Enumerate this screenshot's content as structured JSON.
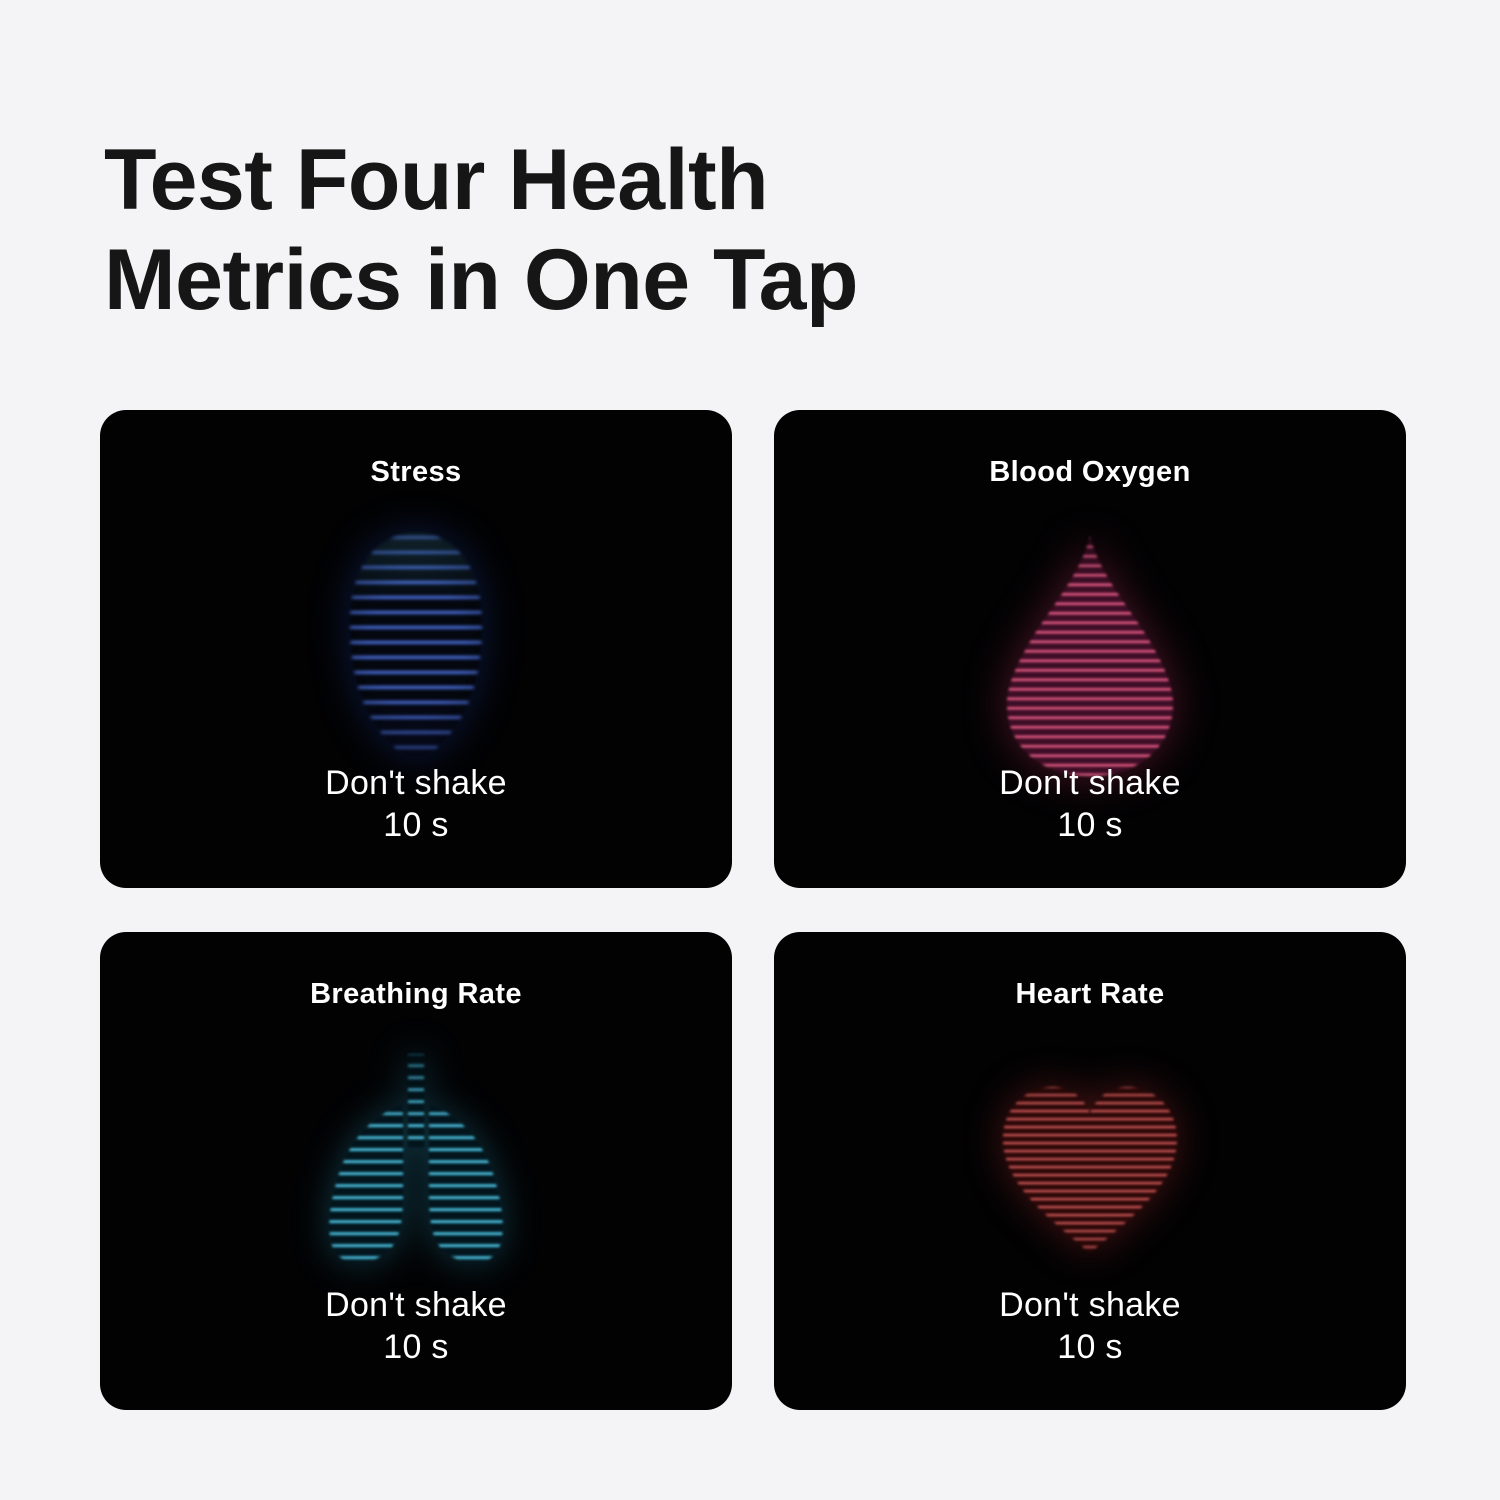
{
  "page": {
    "background_color": "#f4f4f6",
    "heading": {
      "line1": "Test Four Health",
      "line2": "Metrics in One Tap",
      "color": "#161616"
    }
  },
  "card_style": {
    "background_color": "#020203",
    "text_color": "#ffffff"
  },
  "cards": [
    {
      "title": "Stress",
      "instruction": "Don't shake",
      "countdown": "10 s",
      "icon": "head-scan-icon",
      "accent_color": "#3a64e4"
    },
    {
      "title": "Blood Oxygen",
      "instruction": "Don't shake",
      "countdown": "10 s",
      "icon": "blood-drop-scan-icon",
      "accent_color": "#e04070"
    },
    {
      "title": "Breathing Rate",
      "instruction": "Don't shake",
      "countdown": "10 s",
      "icon": "lungs-scan-icon",
      "accent_color": "#2aa3c6"
    },
    {
      "title": "Heart Rate",
      "instruction": "Don't shake",
      "countdown": "10 s",
      "icon": "heart-scan-icon",
      "accent_color": "#cc3d3d"
    }
  ]
}
